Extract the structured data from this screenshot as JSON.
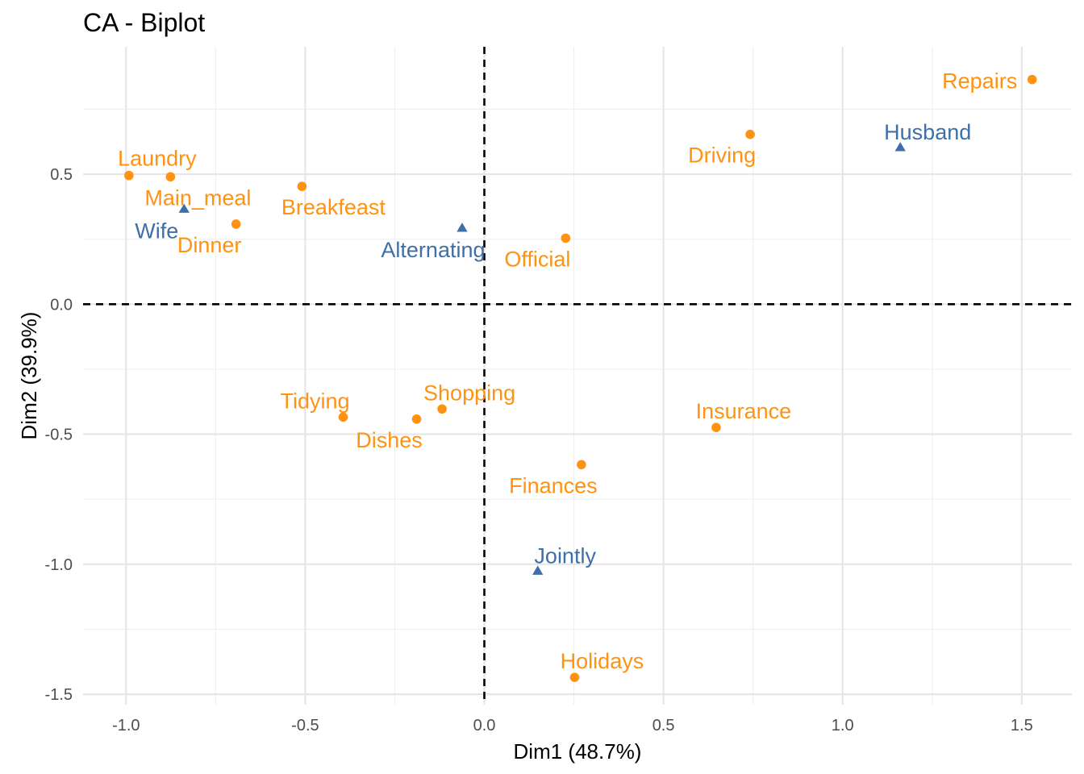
{
  "chart_data": {
    "type": "scatter",
    "title": "CA - Biplot",
    "xlabel": "Dim1 (48.7%)",
    "ylabel": "Dim2 (39.9%)",
    "xlim": [
      -1.12,
      1.64
    ],
    "ylim": [
      -1.54,
      0.99
    ],
    "x_ticks": [
      -1.0,
      -0.5,
      0.0,
      0.5,
      1.0,
      1.5
    ],
    "x_tick_labels": [
      "-1.0",
      "-0.5",
      "0.0",
      "0.5",
      "1.0",
      "1.5"
    ],
    "y_ticks": [
      -1.5,
      -1.0,
      -0.5,
      0.0,
      0.5
    ],
    "y_tick_labels": [
      "-1.5",
      "-1.0",
      "-0.5",
      "0.0",
      "0.5"
    ],
    "grid": true,
    "reference_lines": {
      "x": 0,
      "y": 0,
      "style": "dashed"
    },
    "colors": {
      "rows": "#ff9311",
      "cols": "#3e6fa8"
    },
    "series": [
      {
        "group": "rows",
        "marker": "circle",
        "points": [
          {
            "label": "Laundry",
            "x": -0.992,
            "y": 0.495
          },
          {
            "label": "Main_meal",
            "x": -0.876,
            "y": 0.49
          },
          {
            "label": "Dinner",
            "x": -0.693,
            "y": 0.308
          },
          {
            "label": "Breakfeast",
            "x": -0.509,
            "y": 0.453
          },
          {
            "label": "Tidying",
            "x": -0.394,
            "y": -0.434
          },
          {
            "label": "Dishes",
            "x": -0.189,
            "y": -0.442
          },
          {
            "label": "Shopping",
            "x": -0.118,
            "y": -0.403
          },
          {
            "label": "Official",
            "x": 0.227,
            "y": 0.254
          },
          {
            "label": "Driving",
            "x": 0.742,
            "y": 0.653
          },
          {
            "label": "Finances",
            "x": 0.271,
            "y": -0.617
          },
          {
            "label": "Insurance",
            "x": 0.647,
            "y": -0.474
          },
          {
            "label": "Repairs",
            "x": 1.529,
            "y": 0.864
          },
          {
            "label": "Holidays",
            "x": 0.252,
            "y": -1.435
          }
        ]
      },
      {
        "group": "cols",
        "marker": "triangle",
        "points": [
          {
            "label": "Wife",
            "x": -0.838,
            "y": 0.365
          },
          {
            "label": "Alternating",
            "x": -0.062,
            "y": 0.292
          },
          {
            "label": "Jointly",
            "x": 0.149,
            "y": -1.027
          },
          {
            "label": "Husband",
            "x": 1.161,
            "y": 0.602
          }
        ]
      }
    ]
  }
}
